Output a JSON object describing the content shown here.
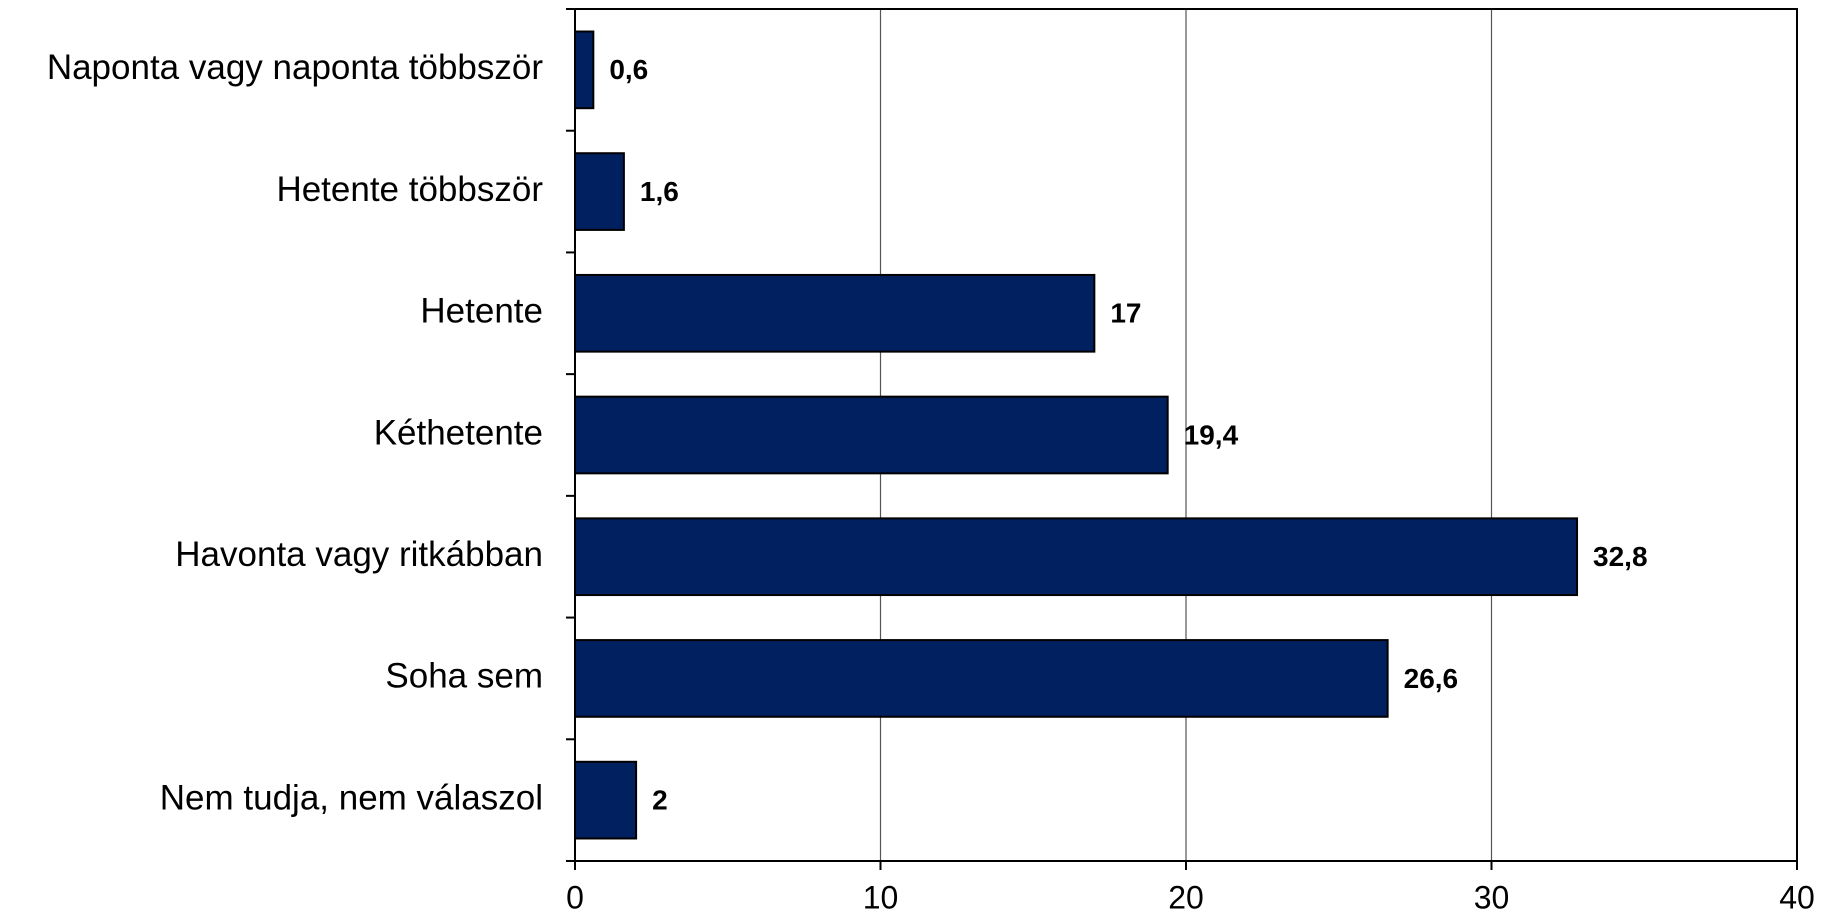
{
  "chart_data": {
    "type": "bar",
    "orientation": "horizontal",
    "categories": [
      "Naponta vagy naponta többször",
      "Hetente többször",
      "Hetente",
      "Kéthetente",
      "Havonta vagy ritkábban",
      "Soha sem",
      "Nem tudja, nem válaszol"
    ],
    "values": [
      0.6,
      1.6,
      17,
      19.4,
      32.8,
      26.6,
      2
    ],
    "value_labels": [
      "0,6",
      "1,6",
      "17",
      "19,4",
      "32,8",
      "26,6",
      "2"
    ],
    "color": "#002060",
    "xlim": [
      0,
      40
    ],
    "xticks": [
      0,
      10,
      20,
      30,
      40
    ],
    "grid": true
  }
}
